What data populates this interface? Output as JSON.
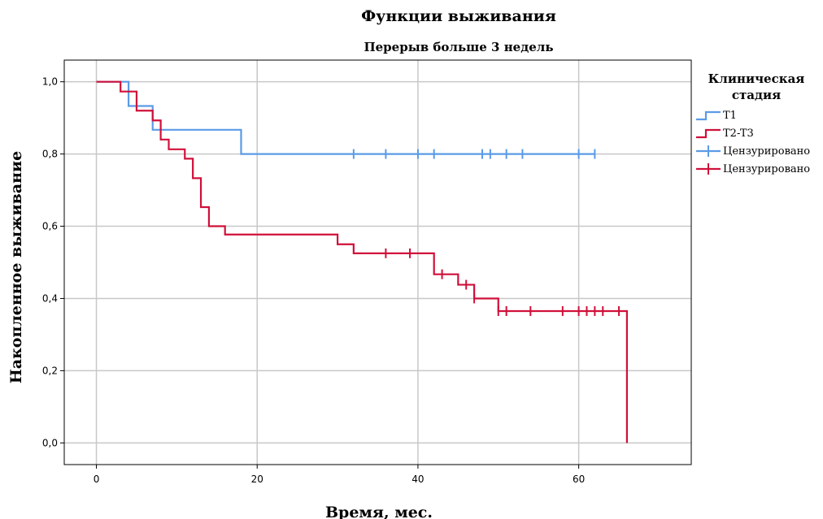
{
  "chart_data": {
    "type": "line",
    "title": "Функции выживания",
    "subtitle": "Перерыв больше 3 недель",
    "xlabel": "Время, мес.",
    "ylabel": "Накопленное выживание",
    "xlim": [
      -4,
      74
    ],
    "ylim": [
      -0.06,
      1.06
    ],
    "x_ticks": [
      0,
      20,
      40,
      60
    ],
    "x_tick_labels": [
      "0",
      "20",
      "40",
      "60"
    ],
    "y_ticks": [
      0.0,
      0.2,
      0.4,
      0.6,
      0.8,
      1.0
    ],
    "y_tick_labels": [
      "0,0",
      "0,2",
      "0,4",
      "0,6",
      "0,8",
      "1,0"
    ],
    "grid": true,
    "legend": {
      "title": "Клиническая стадия",
      "title_lines": [
        "Клиническая",
        "стадия"
      ],
      "placement": "right",
      "entries": [
        {
          "label": "T1",
          "series": 0,
          "kind": "line"
        },
        {
          "label": "T2-T3",
          "series": 1,
          "kind": "line"
        },
        {
          "label": "Цензурировано",
          "series": 0,
          "kind": "censor"
        },
        {
          "label": "Цензурировано",
          "series": 1,
          "kind": "censor"
        }
      ]
    },
    "series": [
      {
        "name": "T1",
        "color": "#5b9be6",
        "steps": [
          [
            0,
            1.0
          ],
          [
            4,
            0.933
          ],
          [
            7,
            0.867
          ],
          [
            18,
            0.8
          ],
          [
            62,
            0.8
          ]
        ],
        "censored": [
          [
            32,
            0.8
          ],
          [
            36,
            0.8
          ],
          [
            40,
            0.8
          ],
          [
            42,
            0.8
          ],
          [
            48,
            0.8
          ],
          [
            49,
            0.8
          ],
          [
            51,
            0.8
          ],
          [
            53,
            0.8
          ],
          [
            60,
            0.8
          ],
          [
            62,
            0.8
          ]
        ]
      },
      {
        "name": "T2-T3",
        "color": "#d0103a",
        "steps": [
          [
            0,
            1.0
          ],
          [
            3,
            0.973
          ],
          [
            5,
            0.92
          ],
          [
            7,
            0.893
          ],
          [
            8,
            0.84
          ],
          [
            9,
            0.813
          ],
          [
            11,
            0.787
          ],
          [
            12,
            0.733
          ],
          [
            13,
            0.653
          ],
          [
            14,
            0.6
          ],
          [
            16,
            0.577
          ],
          [
            30,
            0.55
          ],
          [
            32,
            0.525
          ],
          [
            42,
            0.467
          ],
          [
            45,
            0.438
          ],
          [
            47,
            0.4
          ],
          [
            50,
            0.365
          ],
          [
            66,
            0.365
          ],
          [
            66,
            0.0
          ]
        ],
        "censored": [
          [
            36,
            0.525
          ],
          [
            39,
            0.525
          ],
          [
            43,
            0.467
          ],
          [
            46,
            0.438
          ],
          [
            47,
            0.4
          ],
          [
            50,
            0.365
          ],
          [
            51,
            0.365
          ],
          [
            54,
            0.365
          ],
          [
            58,
            0.365
          ],
          [
            60,
            0.365
          ],
          [
            61,
            0.365
          ],
          [
            62,
            0.365
          ],
          [
            63,
            0.365
          ],
          [
            65,
            0.365
          ]
        ]
      }
    ]
  }
}
